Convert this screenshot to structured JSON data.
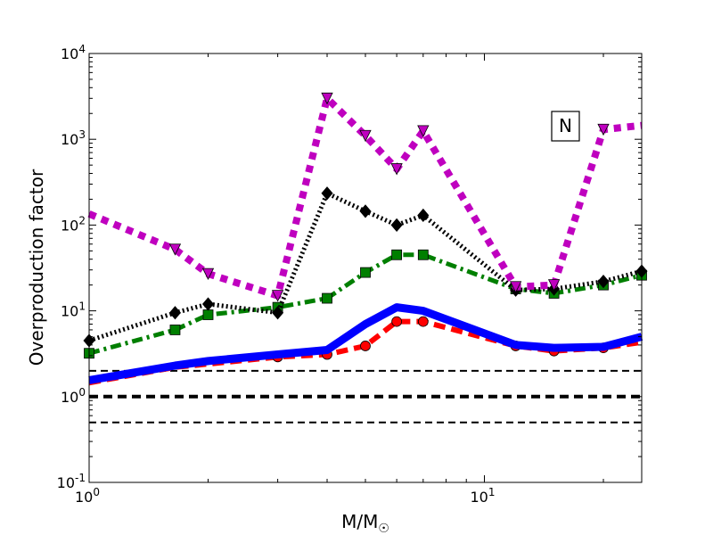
{
  "chart_data": {
    "type": "line",
    "title": "",
    "xlabel": "M/M",
    "xlabel_sub": "☉",
    "ylabel": "Overproduction factor",
    "xscale": "log",
    "yscale": "log",
    "xlim": [
      1,
      25
    ],
    "ylim": [
      0.1,
      10000
    ],
    "grid": false,
    "legend": "none",
    "annotation": "N",
    "x_ticks": [
      {
        "value": 1,
        "base": "10",
        "exp": "0"
      },
      {
        "value": 10,
        "base": "10",
        "exp": "1"
      }
    ],
    "y_ticks": [
      {
        "value": 0.1,
        "base": "10",
        "exp": "-1"
      },
      {
        "value": 1,
        "base": "10",
        "exp": "0"
      },
      {
        "value": 10,
        "base": "10",
        "exp": "1"
      },
      {
        "value": 100,
        "base": "10",
        "exp": "2"
      },
      {
        "value": 1000,
        "base": "10",
        "exp": "3"
      },
      {
        "value": 10000,
        "base": "10",
        "exp": "4"
      }
    ],
    "reference_lines": [
      {
        "y": 2,
        "color": "#000000",
        "style": "dashed",
        "weight": "thin"
      },
      {
        "y": 1,
        "color": "#000000",
        "style": "dashed",
        "weight": "thick"
      },
      {
        "y": 0.5,
        "color": "#000000",
        "style": "dashed",
        "weight": "thin"
      }
    ],
    "series": [
      {
        "color": "#bf00bf",
        "style": "dotted-thick",
        "marker": "triangle-down",
        "x": [
          1,
          1.65,
          2,
          3,
          4,
          5,
          6,
          7,
          12,
          15,
          20,
          25
        ],
        "y": [
          135,
          52,
          27,
          15,
          3000,
          1100,
          450,
          1250,
          19,
          20,
          1300,
          1450
        ],
        "marked": [
          false,
          true,
          true,
          true,
          true,
          true,
          true,
          true,
          true,
          true,
          true,
          false
        ]
      },
      {
        "color": "#000000",
        "style": "dotted",
        "marker": "diamond",
        "x": [
          1,
          1.65,
          2,
          3,
          4,
          5,
          6,
          7,
          12,
          15,
          20,
          25
        ],
        "y": [
          4.5,
          9.5,
          12,
          9.5,
          235,
          145,
          100,
          130,
          17.5,
          18,
          22,
          29
        ],
        "marked": [
          true,
          true,
          true,
          true,
          true,
          true,
          true,
          true,
          true,
          true,
          true,
          true
        ]
      },
      {
        "color": "#007f00",
        "style": "dashdot",
        "marker": "square",
        "x": [
          1,
          1.65,
          2,
          3,
          4,
          5,
          6,
          7,
          12,
          15,
          20,
          25
        ],
        "y": [
          3.2,
          6,
          9,
          11,
          14,
          28,
          45,
          45,
          18,
          16,
          20,
          26
        ],
        "marked": [
          true,
          true,
          true,
          true,
          true,
          true,
          true,
          true,
          true,
          true,
          true,
          true
        ]
      },
      {
        "color": "#0000ff",
        "style": "solid",
        "marker": "none",
        "x": [
          1,
          1.65,
          2,
          3,
          4,
          5,
          6,
          7,
          12,
          15,
          20,
          25
        ],
        "y": [
          1.55,
          2.3,
          2.6,
          3.1,
          3.5,
          7,
          11,
          10,
          4,
          3.7,
          3.8,
          5
        ],
        "marked": [
          false,
          false,
          false,
          false,
          false,
          false,
          false,
          false,
          false,
          false,
          false,
          false
        ]
      },
      {
        "color": "#ff0000",
        "style": "dashed",
        "marker": "circle",
        "x": [
          1,
          1.65,
          2,
          3,
          4,
          5,
          6,
          7,
          12,
          15,
          20,
          25
        ],
        "y": [
          1.45,
          2.2,
          2.4,
          2.9,
          3.1,
          3.9,
          7.5,
          7.5,
          3.9,
          3.4,
          3.7,
          4.3
        ],
        "marked": [
          false,
          false,
          false,
          true,
          true,
          true,
          true,
          true,
          true,
          true,
          true,
          false
        ]
      }
    ]
  }
}
